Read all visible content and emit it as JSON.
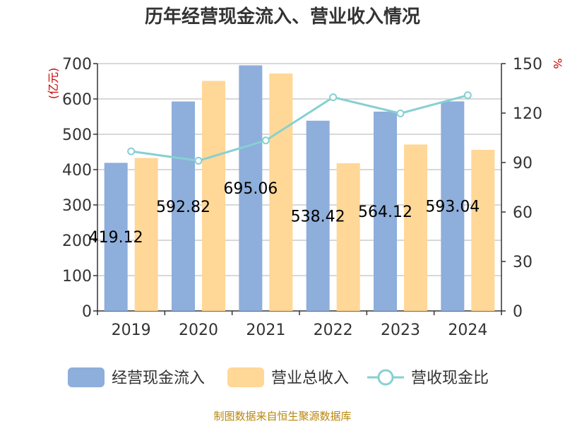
{
  "chart_data": {
    "type": "bar",
    "title": "历年经营现金流入、营业收入情况",
    "categories": [
      "2019",
      "2020",
      "2021",
      "2022",
      "2023",
      "2024"
    ],
    "series": [
      {
        "name": "经营现金流入",
        "type": "bar",
        "axis": "left",
        "color": "#8eaedb",
        "values": [
          419.12,
          592.82,
          695.06,
          538.42,
          564.12,
          593.04
        ],
        "labels": [
          "419.12",
          "592.82",
          "695.06",
          "538.42",
          "564.12",
          "593.04"
        ]
      },
      {
        "name": "营业总收入",
        "type": "bar",
        "axis": "left",
        "color": "#ffd797",
        "values": [
          433,
          651,
          672,
          418,
          471,
          456
        ]
      },
      {
        "name": "营收现金比",
        "type": "line",
        "axis": "right",
        "color": "#86d0d2",
        "values": [
          96.8,
          91.1,
          103.4,
          129.6,
          119.8,
          130.8
        ]
      }
    ],
    "y_left": {
      "label": "(亿元)",
      "ylim": [
        0,
        700
      ],
      "ticks": [
        "0",
        "100",
        "200",
        "300",
        "400",
        "500",
        "600",
        "700"
      ]
    },
    "y_right": {
      "label": "%",
      "ylim": [
        0,
        150
      ],
      "ticks": [
        "0",
        "30",
        "60",
        "90",
        "120",
        "150"
      ]
    },
    "legend_position": "bottom",
    "source": "制图数据来自恒生聚源数据库"
  }
}
